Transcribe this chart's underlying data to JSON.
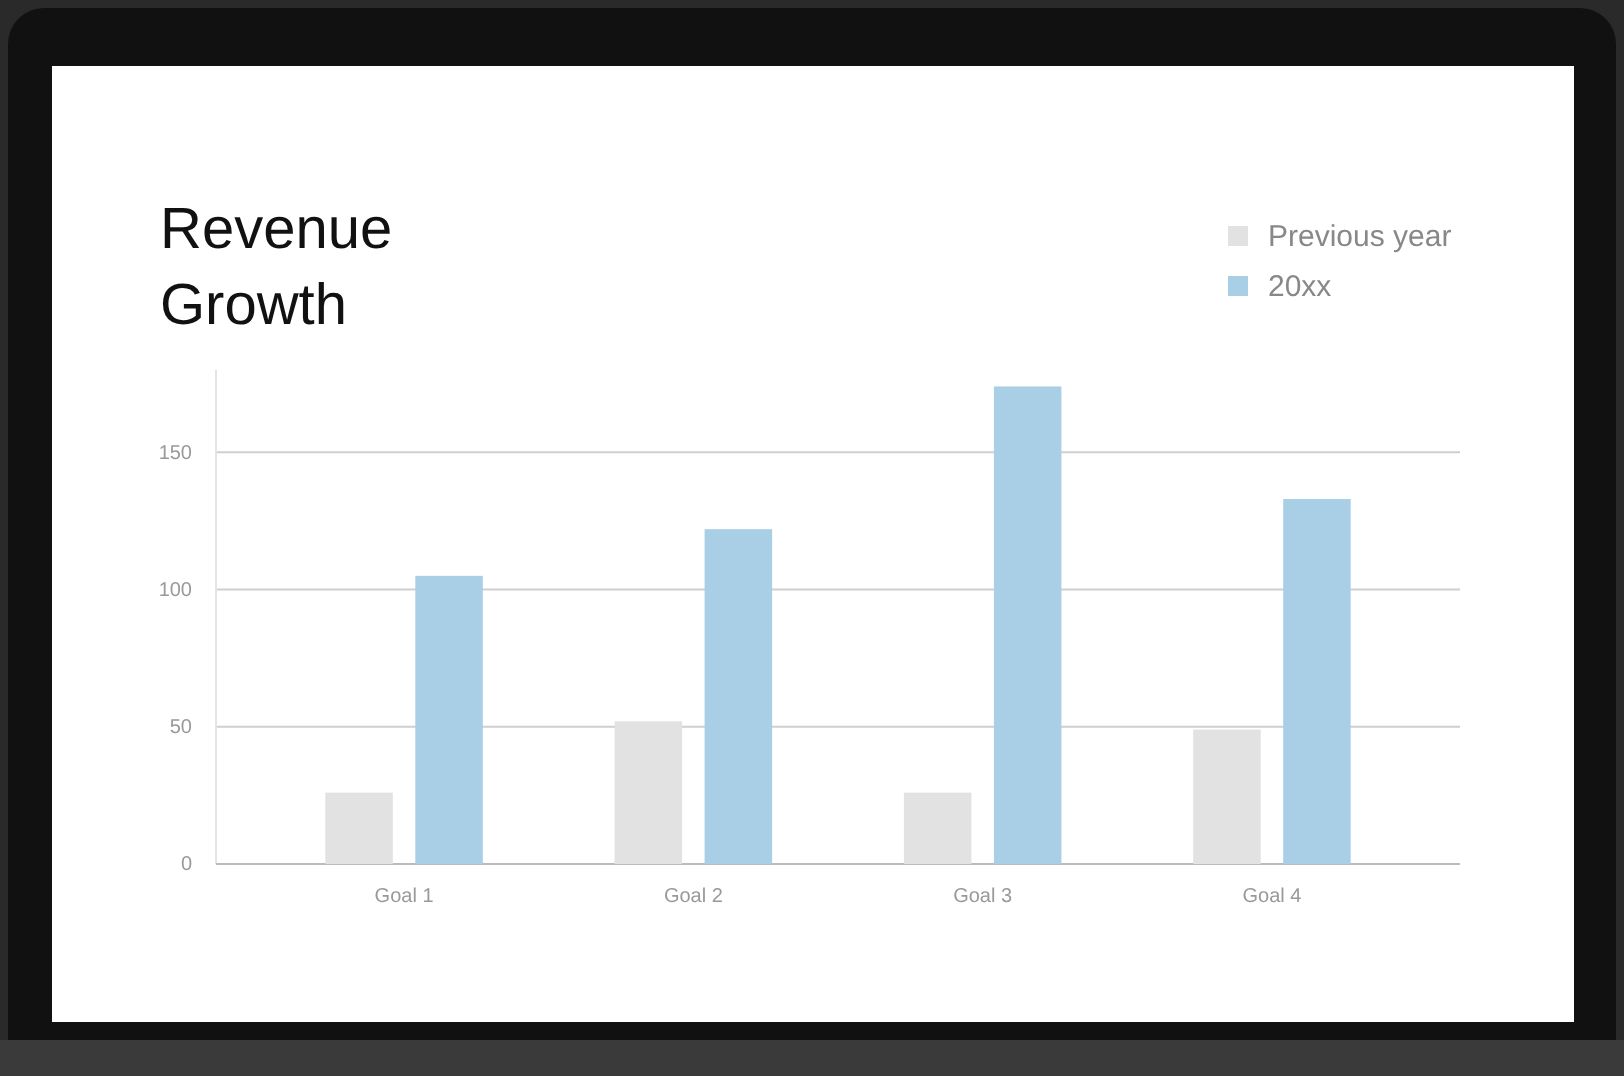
{
  "chart_data": {
    "type": "bar",
    "title": "Revenue\nGrowth",
    "categories": [
      "Goal 1",
      "Goal 2",
      "Goal 3",
      "Goal 4"
    ],
    "series": [
      {
        "name": "Previous year",
        "color": "#e2e2e2",
        "values": [
          26,
          52,
          26,
          49
        ]
      },
      {
        "name": "20xx",
        "color": "#a9cfe6",
        "values": [
          105,
          122,
          174,
          133
        ]
      }
    ],
    "ylim": [
      0,
      180
    ],
    "yticks": [
      0,
      50,
      100,
      150
    ],
    "grid": "y",
    "legend": "top right"
  }
}
